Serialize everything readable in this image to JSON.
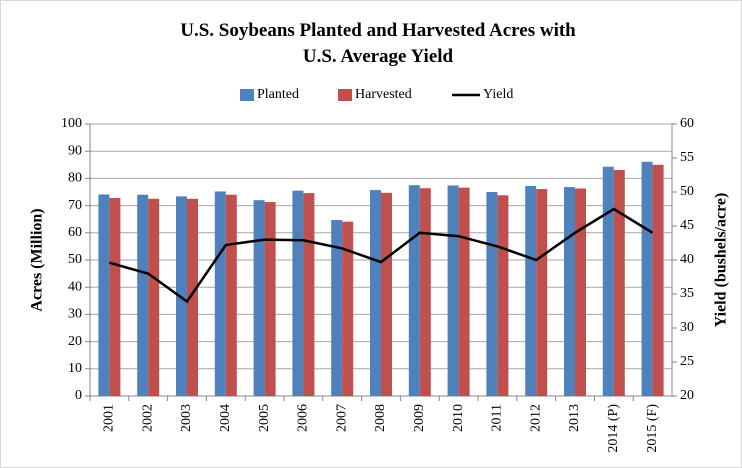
{
  "chart_data": {
    "type": "bar",
    "title": "U.S. Soybeans Planted and Harvested Acres with U.S. Average Yield",
    "y_label": "Acres (Million)",
    "y2_label": "Yield (bushels/acre)",
    "categories": [
      "2001",
      "2002",
      "2003",
      "2004",
      "2005",
      "2006",
      "2007",
      "2008",
      "2009",
      "2010",
      "2011",
      "2012",
      "2013",
      "2014 (P)",
      "2015 (F)"
    ],
    "series": [
      {
        "name": "Planted",
        "type": "bar",
        "color": "#4f81bd",
        "values": [
          74.1,
          74.0,
          73.4,
          75.2,
          72.0,
          75.5,
          64.7,
          75.7,
          77.5,
          77.4,
          75.0,
          77.2,
          76.8,
          84.3,
          86.1
        ]
      },
      {
        "name": "Harvested",
        "type": "bar",
        "color": "#c0504d",
        "values": [
          72.8,
          72.5,
          72.5,
          74.0,
          71.3,
          74.6,
          64.1,
          74.7,
          76.4,
          76.6,
          73.8,
          76.1,
          76.3,
          83.1,
          85.0
        ]
      },
      {
        "name": "Yield",
        "type": "line",
        "axis": "y2",
        "color": "#000000",
        "values": [
          39.6,
          38.0,
          33.9,
          42.2,
          43.0,
          42.9,
          41.7,
          39.7,
          44.0,
          43.5,
          42.0,
          40.0,
          44.0,
          47.5,
          44.0
        ]
      }
    ],
    "ylim": [
      0,
      100
    ],
    "yticks": [
      0,
      10,
      20,
      30,
      40,
      50,
      60,
      70,
      80,
      90,
      100
    ],
    "y2lim": [
      20,
      60
    ],
    "y2ticks": [
      20,
      25,
      30,
      35,
      40,
      45,
      50,
      55,
      60
    ],
    "grid": true,
    "legend": "top"
  }
}
